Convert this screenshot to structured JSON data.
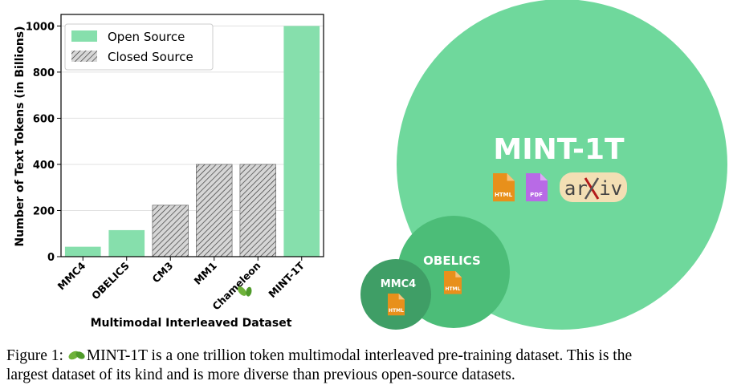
{
  "chart_data": {
    "type": "bar",
    "title": "",
    "xlabel": "Multimodal Interleaved Dataset",
    "ylabel": "Number of Text Tokens (in Billions)",
    "ylim": [
      0,
      1050
    ],
    "yticks": [
      0,
      200,
      400,
      600,
      800,
      1000
    ],
    "grid": true,
    "legend_position": "top-left",
    "categories": [
      "MMC4",
      "OBELICS",
      "CM3",
      "MM1",
      "Chameleon",
      "MINT-1T"
    ],
    "values": [
      43,
      115,
      223,
      400,
      400,
      1000
    ],
    "source_type": [
      "open",
      "open",
      "closed",
      "closed",
      "closed",
      "open"
    ],
    "legend": [
      {
        "key": "open",
        "label": "Open Source"
      },
      {
        "key": "closed",
        "label": "Closed Source"
      }
    ]
  },
  "bubbles": {
    "mint": {
      "label": "MINT-1T",
      "icons": [
        "HTML",
        "PDF",
        "arxiv"
      ]
    },
    "obelics": {
      "label": "OBELICS",
      "icons": [
        "HTML"
      ]
    },
    "mmc4": {
      "label": "MMC4",
      "icons": [
        "HTML"
      ]
    }
  },
  "caption": {
    "figure_label": "Figure 1:",
    "line1_rest": "MINT-1T is a one trillion token multimodal interleaved pre-training dataset. This is the",
    "line2": "largest dataset of its kind and is more diverse than previous open-source datasets."
  },
  "colors": {
    "open": "#86dfac",
    "closed_fill": "#d6d6d6",
    "big_bubble": "#6fd89c",
    "mid_bubble": "#4cbd78",
    "small_bubble": "#3f9e66",
    "html_icon": "#e8901b",
    "pdf_icon": "#b86ae6"
  }
}
